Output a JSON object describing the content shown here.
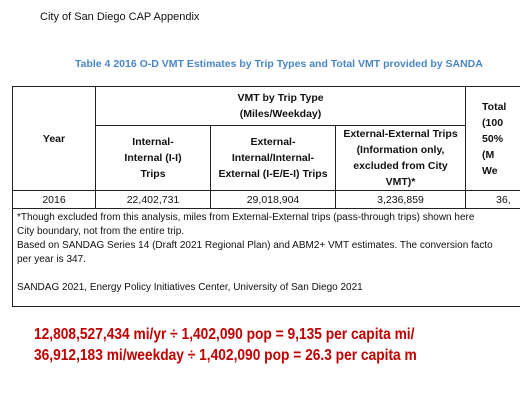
{
  "header": {
    "running_title": "City of San Diego CAP Appendix"
  },
  "table": {
    "caption": "Table 4 2016 O-D VMT Estimates by Trip Types and Total VMT provided by SANDA",
    "year_header": "Year",
    "group_header": [
      "VMT by Trip Type",
      "(Miles/Weekday)"
    ],
    "columns": [
      [
        "Internal-",
        "Internal (I-I)",
        "Trips"
      ],
      [
        "External-",
        "Internal/Internal-",
        "External (I-E/E-I) Trips"
      ],
      [
        "External-External Trips",
        "(Information only,",
        "excluded from City",
        "VMT)*"
      ]
    ],
    "total_header": [
      "Total",
      "(100",
      "50%",
      "(M",
      "We"
    ],
    "rows": [
      [
        "2016",
        "22,402,731",
        "29,018,904",
        "3,236,859",
        "36,"
      ]
    ],
    "notes": [
      "*Though excluded from this analysis, miles from External-External trips (pass-through trips) shown here",
      "City boundary, not from the entire trip.",
      "Based on SANDAG Series 14 (Draft 2021 Regional Plan) and ABM2+ VMT estimates. The conversion facto",
      "per year is 347.",
      "",
      "SANDAG 2021, Energy Policy Initiatives Center, University of San Diego 2021"
    ]
  },
  "annotations": [
    "12,808,527,434 mi/yr ÷ 1,402,090 pop = 9,135 per capita mi/",
    "36,912,183 mi/weekday ÷ 1,402,090 pop = 26.3 per capita m"
  ]
}
